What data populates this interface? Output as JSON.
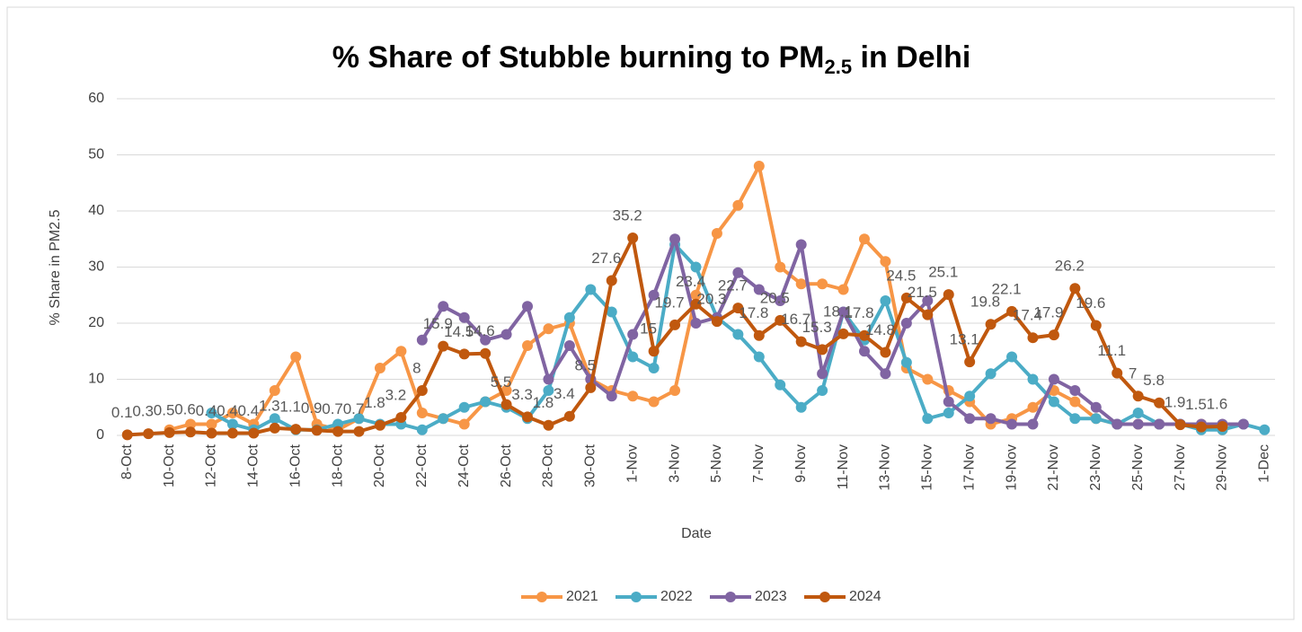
{
  "chart_data": {
    "type": "line",
    "title": "% Share of Stubble burning to PM",
    "title_subscript": "2.5",
    "title_suffix": " in Delhi",
    "x_label": "Date",
    "y_label": "% Share in PM2.5",
    "categories": [
      "8-Oct",
      null,
      "10-Oct",
      null,
      "12-Oct",
      null,
      "14-Oct",
      null,
      "16-Oct",
      null,
      "18-Oct",
      null,
      "20-Oct",
      null,
      "22-Oct",
      null,
      "24-Oct",
      null,
      "26-Oct",
      null,
      "28-Oct",
      null,
      "30-Oct",
      null,
      "1-Nov",
      null,
      "3-Nov",
      null,
      "5-Nov",
      null,
      "7-Nov",
      null,
      "9-Nov",
      null,
      "11-Nov",
      null,
      "13-Nov",
      null,
      "15-Nov",
      null,
      "17-Nov",
      null,
      "19-Nov",
      null,
      "21-Nov",
      null,
      "23-Nov",
      null,
      "25-Nov",
      null,
      "27-Nov",
      null,
      "29-Nov",
      null,
      "1-Dec"
    ],
    "series": [
      {
        "name": "2021",
        "color": "#F79646",
        "values": [
          null,
          null,
          1,
          2,
          2,
          4,
          2,
          8,
          14,
          2,
          1,
          3,
          12,
          15,
          4,
          3,
          2,
          6,
          8,
          16,
          19,
          20,
          10,
          8,
          7,
          6,
          8,
          25,
          36,
          41,
          48,
          30,
          27,
          27,
          26,
          35,
          31,
          12,
          10,
          8,
          6,
          2,
          3,
          5,
          8,
          6,
          3,
          2,
          2,
          2,
          2,
          2,
          1,
          null,
          null
        ]
      },
      {
        "name": "2022",
        "color": "#4BACC6",
        "values": [
          null,
          null,
          null,
          null,
          4,
          2,
          1,
          3,
          1,
          1,
          2,
          3,
          2,
          2,
          1,
          3,
          5,
          6,
          5,
          3,
          8,
          21,
          26,
          22,
          14,
          12,
          34,
          30,
          21,
          18,
          14,
          9,
          5,
          8,
          22,
          17,
          24,
          13,
          3,
          4,
          7,
          11,
          14,
          10,
          6,
          3,
          3,
          2,
          4,
          2,
          2,
          1,
          1,
          2,
          1
        ]
      },
      {
        "name": "2023",
        "color": "#8064A2",
        "values": [
          null,
          null,
          null,
          null,
          null,
          null,
          null,
          null,
          null,
          null,
          null,
          null,
          null,
          null,
          17,
          23,
          21,
          17,
          18,
          23,
          10,
          16,
          10,
          7,
          18,
          25,
          35,
          20,
          21,
          29,
          26,
          24,
          34,
          11,
          22,
          15,
          11,
          20,
          24,
          6,
          3,
          3,
          2,
          2,
          10,
          8,
          5,
          2,
          2,
          2,
          2,
          2,
          2,
          2,
          null
        ]
      },
      {
        "name": "2024",
        "color": "#C0580E",
        "data_labels": true,
        "values": [
          0.1,
          0.3,
          0.5,
          0.6,
          0.4,
          0.4,
          0.4,
          1.3,
          1.1,
          0.9,
          0.7,
          0.7,
          1.8,
          3.2,
          8,
          15.9,
          14.5,
          14.6,
          5.5,
          3.3,
          1.8,
          3.4,
          8.5,
          27.6,
          35.2,
          15,
          19.7,
          23.4,
          20.3,
          22.7,
          17.8,
          20.5,
          16.7,
          15.3,
          18.1,
          17.8,
          14.8,
          24.5,
          21.5,
          25.1,
          13.1,
          19.8,
          22.1,
          17.4,
          17.9,
          26.2,
          19.6,
          11.1,
          7,
          5.8,
          1.9,
          1.5,
          1.6,
          null,
          null
        ]
      }
    ],
    "ylim": [
      0,
      60
    ],
    "yticks": [
      0,
      10,
      20,
      30,
      40,
      50,
      60
    ],
    "grid": true,
    "legend": "bottom"
  }
}
